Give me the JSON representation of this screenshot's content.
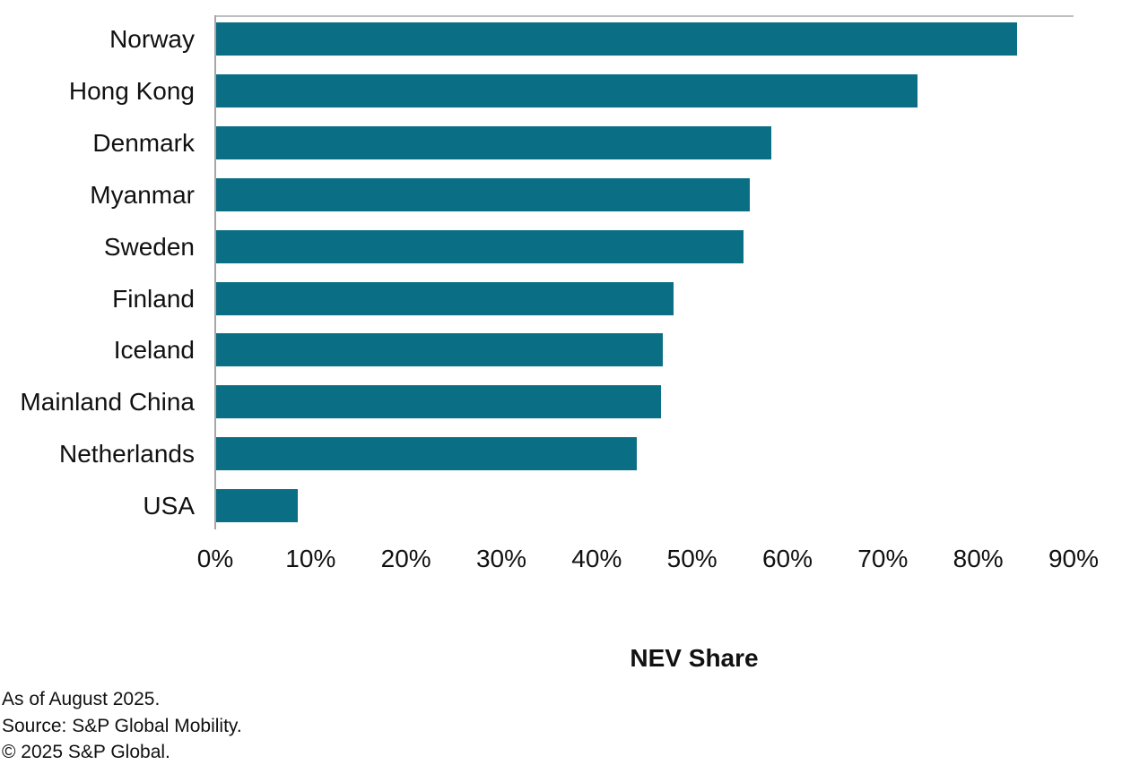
{
  "chart_data": {
    "type": "bar",
    "orientation": "horizontal",
    "title": "",
    "xlabel": "NEV Share",
    "ylabel": "",
    "categories": [
      "Norway",
      "Hong Kong",
      "Denmark",
      "Myanmar",
      "Sweden",
      "Finland",
      "Iceland",
      "Mainland China",
      "Netherlands",
      "USA"
    ],
    "values": [
      84,
      73.5,
      58.2,
      56,
      55.3,
      48,
      46.8,
      46.6,
      44.1,
      8.6
    ],
    "x_ticks": [
      "0%",
      "10%",
      "20%",
      "30%",
      "40%",
      "50%",
      "60%",
      "70%",
      "80%",
      "90%"
    ],
    "xlim": [
      0,
      90
    ],
    "grid": false,
    "legend": false,
    "bar_color": "#0a6e84",
    "axis_line_color": "#a6a6a6",
    "top_border_color": "#bfbfbf"
  },
  "footer": {
    "lines": [
      "As of August 2025.",
      "Source: S&P Global Mobility.",
      "© 2025 S&P Global."
    ]
  }
}
